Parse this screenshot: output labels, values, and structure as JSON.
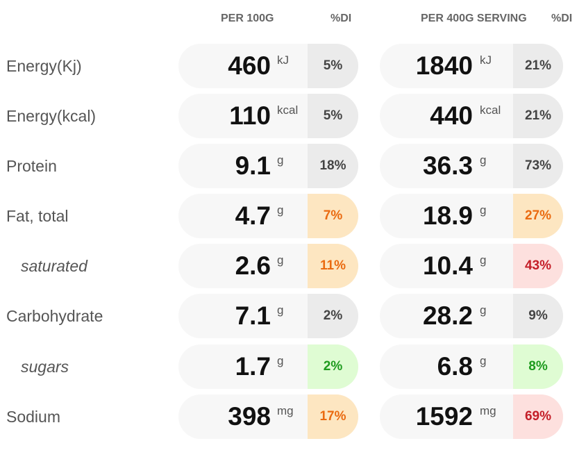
{
  "headers": {
    "per100": "PER 100G",
    "di1": "%DI",
    "perServing": "PER 400G SERVING",
    "di2": "%DI"
  },
  "rows": [
    {
      "label": "Energy(Kj)",
      "v1": "460",
      "u1": "kJ",
      "d1": "5%",
      "v2": "1840",
      "u2": "kJ",
      "d2": "21%"
    },
    {
      "label": "Energy(kcal)",
      "v1": "110",
      "u1": "kcal",
      "d1": "5%",
      "v2": "440",
      "u2": "kcal",
      "d2": "21%"
    },
    {
      "label": "Protein",
      "v1": "9.1",
      "u1": "g",
      "d1": "18%",
      "v2": "36.3",
      "u2": "g",
      "d2": "73%"
    },
    {
      "label": "Fat, total",
      "v1": "4.7",
      "u1": "g",
      "d1": "7%",
      "v2": "18.9",
      "u2": "g",
      "d2": "27%"
    },
    {
      "label": "saturated",
      "v1": "2.6",
      "u1": "g",
      "d1": "11%",
      "v2": "10.4",
      "u2": "g",
      "d2": "43%"
    },
    {
      "label": "Carbohydrate",
      "v1": "7.1",
      "u1": "g",
      "d1": "2%",
      "v2": "28.2",
      "u2": "g",
      "d2": "9%"
    },
    {
      "label": "sugars",
      "v1": "1.7",
      "u1": "g",
      "d1": "2%",
      "v2": "6.8",
      "u2": "g",
      "d2": "8%"
    },
    {
      "label": "Sodium",
      "v1": "398",
      "u1": "mg",
      "d1": "17%",
      "v2": "1592",
      "u2": "mg",
      "d2": "69%"
    }
  ],
  "colors": {
    "neutral_bg": "#ebebeb",
    "low_bg": "#dffcd3",
    "low_text": "#1e9b1e",
    "medium_bg": "#fde6c1",
    "medium_text": "#ea6a10",
    "high_bg": "#fde0de",
    "high_text": "#c41e28"
  }
}
